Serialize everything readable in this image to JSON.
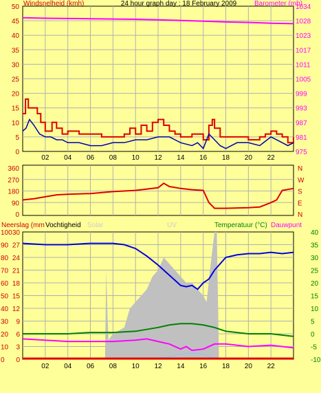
{
  "title": "24 hour graph day : 18 February 2009",
  "chart_data": [
    {
      "type": "line",
      "panel": "wind-barometer",
      "title": "24 hour graph day : 18 February 2009",
      "ylabel_left": "Windsnelheid (kmh)",
      "ylabel_right": "Barometer (mb)",
      "left_ticks": [
        "50",
        "45",
        "40",
        "35",
        "30",
        "25",
        "20",
        "15",
        "10",
        "5",
        "0"
      ],
      "ylim_left": [
        0,
        50
      ],
      "right_ticks": [
        "1034",
        "1028",
        "1023",
        "1017",
        "1011",
        "1005",
        "999",
        "993",
        "987",
        "981",
        "975"
      ],
      "ylim_right": [
        975,
        1034
      ],
      "x_ticks": [
        "02",
        "04",
        "06",
        "08",
        "10",
        "12",
        "14",
        "16",
        "18",
        "20",
        "22"
      ],
      "xlim": [
        0,
        24
      ],
      "grid": true,
      "colors": {
        "gust": "#dd0000",
        "wind": "#0000aa",
        "barometer": "#ff00ff"
      },
      "series": [
        {
          "key": "barometer",
          "axis": "right",
          "x": [
            0,
            2,
            4,
            6,
            8,
            10,
            12,
            14,
            16,
            18,
            20,
            22,
            24
          ],
          "y": [
            1029.3,
            1029.1,
            1029.0,
            1028.9,
            1028.8,
            1028.7,
            1028.5,
            1028.2,
            1027.9,
            1027.6,
            1027.4,
            1027.1,
            1026.9
          ]
        },
        {
          "key": "gust",
          "axis": "left",
          "x": [
            0,
            0.25,
            0.5,
            1.3,
            1.6,
            2.0,
            2.6,
            3.0,
            3.5,
            4.0,
            5.0,
            7.0,
            9.0,
            9.5,
            10.0,
            10.5,
            11.0,
            11.5,
            12.0,
            12.5,
            13.0,
            13.5,
            14.0,
            15.0,
            16.0,
            16.5,
            16.8,
            17.0,
            17.5,
            18.0,
            19.0,
            20.0,
            21.0,
            21.5,
            22.0,
            22.5,
            23.0,
            23.5,
            24.0
          ],
          "y": [
            13,
            18,
            15,
            13,
            10,
            7,
            10,
            8,
            6,
            7,
            6,
            5,
            6,
            8,
            6,
            9,
            7,
            10,
            11,
            9,
            7,
            6,
            5,
            6,
            4,
            9,
            11,
            8,
            5,
            5,
            5,
            4,
            5,
            6,
            7,
            6,
            5,
            3,
            5
          ]
        },
        {
          "key": "wind",
          "axis": "left",
          "x": [
            0,
            0.3,
            0.6,
            1.0,
            1.5,
            2.0,
            2.5,
            3.0,
            3.5,
            4.0,
            5.0,
            6.0,
            7.0,
            8.0,
            9.0,
            10.0,
            11.0,
            12.0,
            13.0,
            14.0,
            15.0,
            15.5,
            16.0,
            16.5,
            17.0,
            17.5,
            18.0,
            19.0,
            20.0,
            21.0,
            22.0,
            22.5,
            23.0,
            23.5,
            24.0
          ],
          "y": [
            7,
            8,
            11,
            9,
            6,
            5,
            5,
            4,
            4,
            3,
            3,
            2,
            2,
            3,
            3,
            4,
            4,
            5,
            5,
            3,
            2,
            3,
            1,
            6,
            4,
            2,
            1,
            3,
            3,
            2,
            5,
            4,
            3,
            2,
            3
          ]
        }
      ]
    },
    {
      "type": "line",
      "panel": "wind-direction",
      "left_ticks": [
        "360",
        "270",
        "180",
        "90",
        "0"
      ],
      "ylim": [
        0,
        360
      ],
      "right_labels": [
        "N",
        "W",
        "S",
        "E",
        "N"
      ],
      "colors": {
        "direction": "#dd0000"
      },
      "series": [
        {
          "key": "direction",
          "x": [
            0,
            1,
            2,
            3,
            4,
            6,
            8,
            10,
            12,
            12.5,
            13,
            14,
            15,
            16,
            16.5,
            17,
            18,
            20,
            21,
            22,
            22.5,
            23,
            24
          ],
          "y": [
            110,
            120,
            135,
            150,
            155,
            160,
            175,
            185,
            205,
            240,
            215,
            200,
            190,
            185,
            90,
            45,
            45,
            50,
            55,
            90,
            110,
            185,
            200
          ]
        }
      ]
    },
    {
      "type": "line",
      "panel": "rain-humidity-temperature",
      "labels": {
        "rain": "Neerslag (mm",
        "humidity": "Vochtigheid",
        "solar": "Solar",
        "uv": "UV",
        "temperature": "Temperatuur (°C)",
        "dewpoint": "Dauwpunt"
      },
      "left_ticks_rain": [
        "100",
        "90",
        "80",
        "70",
        "60",
        "50",
        "40",
        "30",
        "20",
        "10",
        "0"
      ],
      "left_ticks_humidity": [
        "30",
        "27",
        "24",
        "21",
        "18",
        "15",
        "12",
        "9",
        "6",
        "3",
        "0"
      ],
      "right_ticks_temperature": [
        "40",
        "35",
        "30",
        "25",
        "20",
        "15",
        "10",
        "5",
        "0",
        "-5",
        "-10"
      ],
      "ylim_humidity": [
        0,
        100
      ],
      "ylim_temperature": [
        -10,
        40
      ],
      "x_ticks": [
        "02",
        "04",
        "06",
        "08",
        "10",
        "12",
        "14",
        "16",
        "18",
        "20",
        "22"
      ],
      "colors": {
        "solar_fill": "#c0c0c0",
        "humidity": "#0000dd",
        "temperature": "#008000",
        "dewpoint": "#ff00ff",
        "rain": "#dd0000",
        "uv": "#80c8ff"
      },
      "series": [
        {
          "key": "solar",
          "x": [
            7.3,
            7.4,
            7.5,
            7.6,
            8,
            9,
            9.5,
            10,
            10.5,
            11,
            11.5,
            12,
            12.5,
            13,
            13.5,
            14,
            14.5,
            15,
            15.5,
            16,
            16.3,
            16.6,
            17,
            17.2,
            17.4
          ],
          "y": [
            0,
            70,
            40,
            15,
            20,
            25,
            40,
            45,
            50,
            55,
            65,
            70,
            80,
            75,
            70,
            65,
            60,
            60,
            55,
            50,
            45,
            70,
            100,
            100,
            0
          ]
        },
        {
          "key": "humidity",
          "x": [
            0,
            2,
            4,
            6,
            8,
            9,
            10,
            11,
            12,
            13,
            14,
            14.5,
            15,
            15.5,
            16,
            16.5,
            17,
            18,
            19,
            20,
            21,
            22,
            23,
            24
          ],
          "y": [
            91,
            90,
            90,
            91,
            91,
            90,
            87,
            81,
            74,
            66,
            58,
            57,
            58,
            55,
            60,
            63,
            70,
            80,
            82,
            83,
            83,
            84,
            83,
            84
          ]
        },
        {
          "key": "temperature",
          "x": [
            0,
            2,
            4,
            6,
            8,
            10,
            12,
            13,
            14,
            15,
            16,
            17,
            18,
            20,
            22,
            24
          ],
          "y": [
            0,
            0,
            0,
            0.5,
            0.5,
            1,
            2.5,
            3.5,
            4,
            4,
            3.5,
            2.5,
            1,
            0,
            0,
            -1
          ]
        },
        {
          "key": "dewpoint",
          "x": [
            0,
            2,
            4,
            6,
            8,
            10,
            11,
            12,
            13,
            14,
            14.5,
            15,
            16,
            17,
            18,
            20,
            22,
            24
          ],
          "y": [
            -2,
            -2.5,
            -3,
            -3,
            -3,
            -2.5,
            -2,
            -3,
            -4,
            -6,
            -5,
            -6.5,
            -6,
            -4,
            -4,
            -5,
            -4.5,
            -5.5
          ]
        },
        {
          "key": "uv",
          "x": [
            12,
            13,
            14,
            15,
            16,
            17
          ],
          "y": [
            -9.5,
            -9,
            -8,
            -7.5,
            -8,
            -9.5
          ]
        },
        {
          "key": "rain",
          "x": [
            0,
            24
          ],
          "y": [
            0,
            0
          ]
        }
      ]
    }
  ]
}
